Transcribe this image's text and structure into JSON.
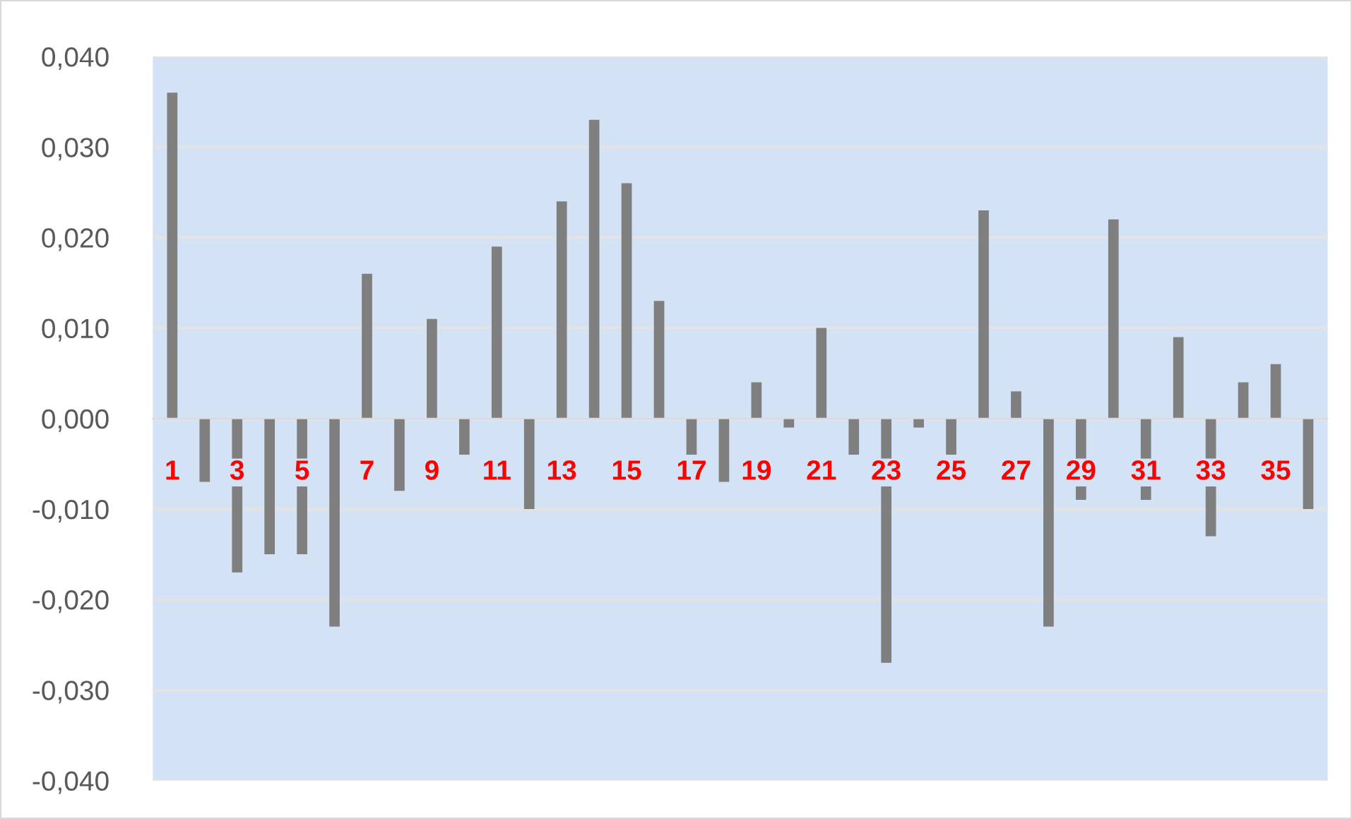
{
  "chart_data": {
    "type": "bar",
    "categories": [
      "1",
      null,
      "3",
      null,
      "5",
      null,
      "7",
      null,
      "9",
      null,
      "11",
      null,
      "13",
      null,
      "15",
      null,
      "17",
      null,
      "19",
      null,
      "21",
      null,
      "23",
      null,
      "25",
      null,
      "27",
      null,
      "29",
      null,
      "31",
      null,
      "33",
      null,
      "35",
      null
    ],
    "values": [
      0.036,
      -0.007,
      -0.017,
      -0.015,
      -0.015,
      -0.023,
      0.016,
      -0.008,
      0.011,
      -0.004,
      0.019,
      -0.01,
      0.024,
      0.033,
      0.026,
      0.013,
      -0.004,
      -0.007,
      0.004,
      -0.001,
      0.01,
      -0.004,
      -0.027,
      -0.001,
      -0.004,
      0.023,
      0.003,
      -0.023,
      -0.009,
      0.022,
      -0.009,
      0.009,
      -0.013,
      0.004,
      0.006,
      -0.01
    ],
    "color": "#7f7f7f",
    "ylim": [
      -0.04,
      0.04
    ],
    "yticks": [
      {
        "value": -0.04,
        "label": "-0,040"
      },
      {
        "value": -0.03,
        "label": "-0,030"
      },
      {
        "value": -0.02,
        "label": "-0,020"
      },
      {
        "value": -0.01,
        "label": "-0,010"
      },
      {
        "value": 0,
        "label": "0,000"
      },
      {
        "value": 0.01,
        "label": "0,010"
      },
      {
        "value": 0.02,
        "label": "0,020"
      },
      {
        "value": 0.03,
        "label": "0,030"
      },
      {
        "value": 0.04,
        "label": "0,040"
      }
    ],
    "grid": "y"
  }
}
